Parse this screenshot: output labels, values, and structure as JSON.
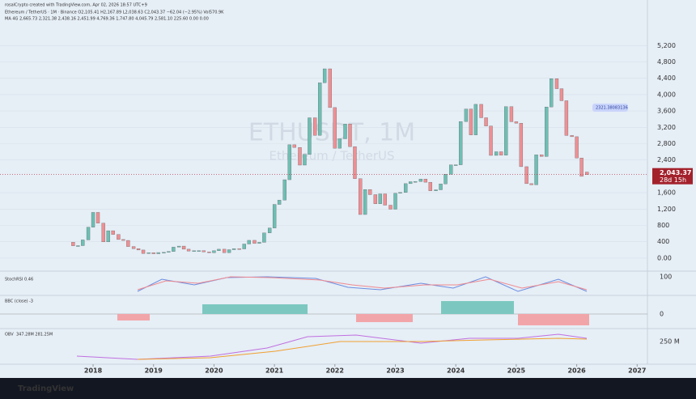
{
  "header": {
    "credit": "rosalCrypto created with TradingView.com, Apr 02, 2026 18:57 UTC+9",
    "legend_line": "Ethereum / TetherUS · 1M · Binance  O2,105.41  H2,167.89  L2,038.63  C2,043.37  −62.04 (−2.95%)  Vol570.9K",
    "ma_line": "MA 4G  2,665.73  2,321.38  2,438.16  2,451.99  4,769.36  1,747.80  4,045.79  2,581.10  225.60  0.00  0.00"
  },
  "watermark": {
    "symbol": "ETHUSDT, 1M",
    "name": "Ethereum / TetherUS"
  },
  "chart_data": {
    "type": "candlestick",
    "x": [
      2017.67,
      2017.75,
      2017.83,
      2017.92,
      2018.0,
      2018.08,
      2018.17,
      2018.25,
      2018.33,
      2018.42,
      2018.5,
      2018.58,
      2018.67,
      2018.75,
      2018.83,
      2018.92,
      2019.0,
      2019.08,
      2019.17,
      2019.25,
      2019.33,
      2019.42,
      2019.5,
      2019.58,
      2019.67,
      2019.75,
      2019.83,
      2019.92,
      2020.0,
      2020.08,
      2020.17,
      2020.25,
      2020.33,
      2020.42,
      2020.5,
      2020.58,
      2020.67,
      2020.75,
      2020.83,
      2020.92,
      2021.0,
      2021.08,
      2021.17,
      2021.25,
      2021.33,
      2021.42,
      2021.5,
      2021.58,
      2021.67,
      2021.75,
      2021.83,
      2021.92,
      2022.0,
      2022.08,
      2022.17,
      2022.25,
      2022.33,
      2022.42,
      2022.5,
      2022.58,
      2022.67,
      2022.75,
      2022.83,
      2022.92,
      2023.0,
      2023.08,
      2023.17,
      2023.25,
      2023.33,
      2023.42,
      2023.5,
      2023.58,
      2023.67,
      2023.75,
      2023.83,
      2023.92,
      2024.0,
      2024.08,
      2024.17,
      2024.25,
      2024.33,
      2024.42,
      2024.5,
      2024.58,
      2024.67,
      2024.75,
      2024.83,
      2024.92,
      2025.0,
      2025.08,
      2025.17,
      2025.25,
      2025.33,
      2025.42,
      2025.5,
      2025.58,
      2025.67,
      2025.75,
      2025.83,
      2025.92,
      2026.0,
      2026.08,
      2026.17
    ],
    "open": [
      388,
      302,
      305,
      445,
      756,
      1118,
      856,
      397,
      670,
      578,
      455,
      433,
      283,
      232,
      198,
      113,
      133,
      107,
      136,
      141,
      162,
      268,
      294,
      218,
      172,
      180,
      183,
      152,
      130,
      180,
      218,
      133,
      206,
      231,
      225,
      345,
      435,
      360,
      386,
      615,
      737,
      1314,
      1418,
      1918,
      2773,
      2707,
      2275,
      2536,
      3433,
      3001,
      4288,
      4631,
      3683,
      2688,
      2919,
      3282,
      2728,
      1942,
      1067,
      1678,
      1553,
      1328,
      1572,
      1295,
      1196,
      1585,
      1605,
      1822,
      1869,
      1874,
      1934,
      1857,
      1645,
      1671,
      1815,
      2051,
      2282,
      2283,
      3340,
      3647,
      3014,
      3762,
      3434,
      3232,
      2513,
      2602,
      2518,
      3705,
      3337,
      3300,
      2237,
      1822,
      1793,
      2528,
      2486,
      3698,
      4391,
      4145,
      3850,
      3000,
      2970,
      2450,
      2105.41
    ],
    "close": [
      302,
      305,
      445,
      756,
      1118,
      856,
      397,
      670,
      578,
      455,
      433,
      283,
      232,
      198,
      113,
      133,
      107,
      136,
      141,
      162,
      268,
      294,
      218,
      172,
      180,
      183,
      152,
      130,
      180,
      218,
      133,
      206,
      231,
      225,
      345,
      435,
      360,
      386,
      615,
      737,
      1314,
      1418,
      1918,
      2773,
      2707,
      2275,
      2536,
      3433,
      3001,
      4288,
      4631,
      3683,
      2688,
      2919,
      3282,
      2728,
      1942,
      1067,
      1678,
      1553,
      1328,
      1572,
      1295,
      1196,
      1585,
      1605,
      1822,
      1869,
      1874,
      1934,
      1857,
      1645,
      1671,
      1815,
      2051,
      2282,
      2283,
      3340,
      3647,
      3014,
      3762,
      3434,
      3232,
      2513,
      2602,
      2518,
      3705,
      3337,
      3300,
      2237,
      1822,
      1793,
      2528,
      2486,
      3698,
      4391,
      4145,
      3850,
      3000,
      2970,
      2450,
      2000,
      2043.37
    ],
    "up_color": "#6dbfb3",
    "down_color": "#ef8f93",
    "xlim": [
      2016.46,
      2027.17
    ],
    "xticks": [
      2018,
      2019,
      2020,
      2021,
      2022,
      2023,
      2024,
      2025,
      2026,
      2027
    ],
    "ylim": [
      -180,
      5760
    ],
    "yticks": [
      {
        "value": 0,
        "label": "0.00"
      },
      400,
      800,
      {
        "value": 1200,
        "label": "1,200"
      },
      {
        "value": 1600,
        "label": "1,600"
      },
      {
        "value": 2400,
        "label": "2,400"
      },
      {
        "value": 2800,
        "label": "2,800"
      },
      {
        "value": 3200,
        "label": "3,200"
      },
      {
        "value": 3600,
        "label": "3,600"
      },
      {
        "value": 4000,
        "label": "4,000"
      },
      {
        "value": 4400,
        "label": "4,400"
      },
      {
        "value": 4800,
        "label": "4,800"
      },
      {
        "value": 5200,
        "label": "5,200"
      }
    ],
    "grid": true,
    "last_price": 2043.37,
    "last_price_label": "2,043.37",
    "countdown": "28d 15h",
    "level_label": "2321.38083136"
  },
  "panels": [
    {
      "name": "StochRSI",
      "value": "0.46",
      "axis": "100"
    },
    {
      "name": "BBC (close)",
      "value": "-3",
      "axis": "0"
    },
    {
      "name": "OBV",
      "value": "347.28M   281.25M",
      "axis": "250 M"
    }
  ],
  "footer": {
    "brand": "TradingView"
  }
}
